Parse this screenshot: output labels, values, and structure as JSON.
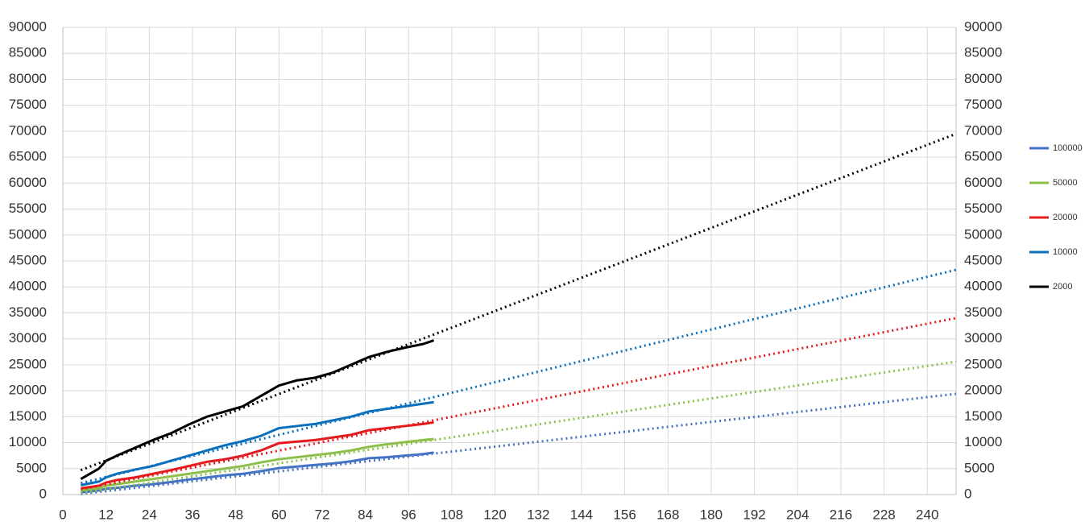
{
  "chart_data": {
    "type": "line",
    "x": [
      5,
      10,
      12,
      15,
      20,
      25,
      30,
      35,
      40,
      45,
      50,
      55,
      60,
      65,
      70,
      75,
      80,
      85,
      90,
      95,
      100,
      103
    ],
    "series": [
      {
        "name": "100000",
        "color": "#4472c4",
        "values": [
          400,
          800,
          1100,
          1300,
          1700,
          2000,
          2400,
          2900,
          3300,
          3700,
          4000,
          4500,
          5100,
          5400,
          5700,
          6000,
          6400,
          7000,
          7200,
          7500,
          7800,
          8100
        ],
        "trend": {
          "x": [
            5,
            248
          ],
          "values": [
            100,
            19400
          ]
        }
      },
      {
        "name": "50000",
        "color": "#8cc04a",
        "values": [
          800,
          1200,
          1700,
          2000,
          2500,
          3000,
          3500,
          4000,
          4500,
          5000,
          5500,
          6200,
          6800,
          7200,
          7600,
          8000,
          8500,
          9200,
          9700,
          10100,
          10500,
          10700
        ],
        "trend": {
          "x": [
            5,
            248
          ],
          "values": [
            300,
            25600
          ]
        }
      },
      {
        "name": "20000",
        "color": "#e41a1c",
        "values": [
          1200,
          1700,
          2300,
          2800,
          3300,
          4000,
          4700,
          5500,
          6300,
          6800,
          7500,
          8500,
          9900,
          10200,
          10500,
          11000,
          11500,
          12400,
          12800,
          13200,
          13600,
          13900
        ],
        "trend": {
          "x": [
            5,
            248
          ],
          "values": [
            1000,
            34000
          ]
        }
      },
      {
        "name": "10000",
        "color": "#0a6fbd",
        "values": [
          1800,
          2500,
          3300,
          4000,
          4800,
          5500,
          6500,
          7500,
          8500,
          9500,
          10300,
          11300,
          12800,
          13200,
          13600,
          14300,
          15000,
          16000,
          16500,
          17000,
          17500,
          17800
        ],
        "trend": {
          "x": [
            5,
            248
          ],
          "values": [
            2200,
            43300
          ]
        }
      },
      {
        "name": "2000",
        "color": "#000000",
        "values": [
          3000,
          5000,
          6500,
          7500,
          9000,
          10500,
          11800,
          13500,
          15000,
          16000,
          17000,
          19000,
          21000,
          22000,
          22500,
          23500,
          25000,
          26500,
          27500,
          28300,
          29000,
          29700
        ],
        "trend": {
          "x": [
            5,
            248
          ],
          "values": [
            4700,
            69500
          ]
        }
      }
    ],
    "xlim": [
      0,
      248
    ],
    "xticks": [
      0,
      12,
      24,
      36,
      48,
      60,
      72,
      84,
      96,
      108,
      120,
      132,
      144,
      156,
      168,
      180,
      192,
      204,
      216,
      228,
      240
    ],
    "ylim": [
      0,
      90000
    ],
    "yticks": [
      0,
      5000,
      10000,
      15000,
      20000,
      25000,
      30000,
      35000,
      40000,
      45000,
      50000,
      55000,
      60000,
      65000,
      70000,
      75000,
      80000,
      85000,
      90000
    ],
    "y2lim": [
      0,
      90000
    ],
    "y2ticks": [
      0,
      5000,
      10000,
      15000,
      20000,
      25000,
      30000,
      35000,
      40000,
      45000,
      50000,
      55000,
      60000,
      65000,
      70000,
      75000,
      80000,
      85000,
      90000
    ],
    "grid": true,
    "legend": "right"
  }
}
